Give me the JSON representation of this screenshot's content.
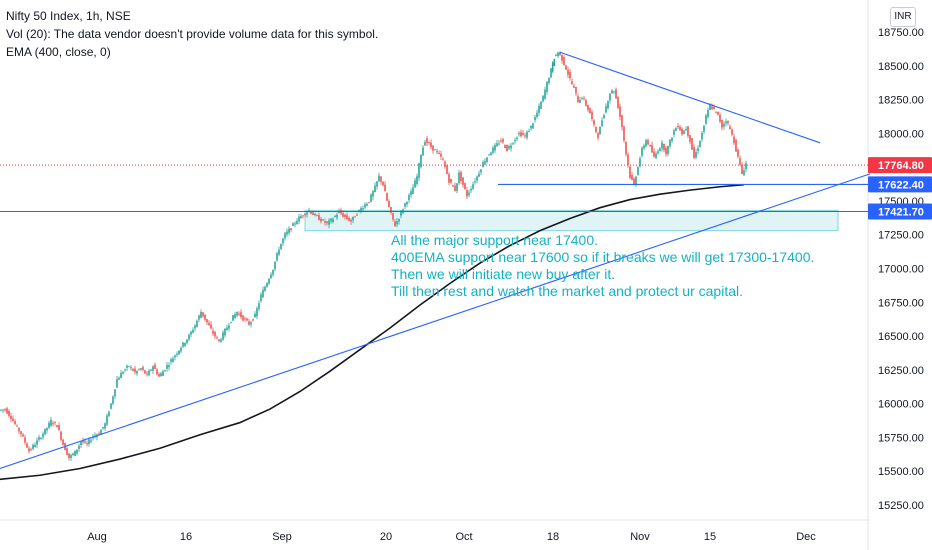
{
  "legend": {
    "symbol_line": "Nifty 50 Index, 1h, NSE",
    "volume_line": "Vol (20): The data vendor doesn't provide volume data for this symbol.",
    "ema_line": "EMA (400, close, 0)"
  },
  "currency_label": "INR",
  "annotation_lines": [
    "All the major support near 17400.",
    "400EMA support near 17600 so if it breaks we will get 17300-17400.",
    "Then we will initiate new buy after it.",
    "Till then rest and watch the market and protect ur capital."
  ],
  "colors": {
    "candle_up": "#26a69a",
    "candle_down": "#ef5350",
    "trendline": "#2962ff",
    "ema": "#131722",
    "current_price": "#f23645",
    "annotation_text": "#12b3c4",
    "support_zone_fill": "#e0f4f6"
  },
  "chart_data": {
    "type": "candlestick",
    "title": "Nifty 50 Index, 1h, NSE",
    "ylim": [
      15100,
      18900
    ],
    "y_ticks": [
      "18750.00",
      "18500.00",
      "18250.00",
      "18000.00",
      "17750.00",
      "17500.00",
      "17250.00",
      "17000.00",
      "16750.00",
      "16500.00",
      "16250.00",
      "16000.00",
      "15750.00",
      "15500.00",
      "15250.00"
    ],
    "x_ticks": [
      "Aug",
      "16",
      "Sep",
      "20",
      "Oct",
      "18",
      "Nov",
      "15",
      "Dec"
    ],
    "price_path": [
      [
        0,
        15950
      ],
      [
        6,
        15960
      ],
      [
        12,
        15900
      ],
      [
        18,
        15820
      ],
      [
        22,
        15780
      ],
      [
        30,
        15650
      ],
      [
        38,
        15720
      ],
      [
        46,
        15800
      ],
      [
        52,
        15870
      ],
      [
        58,
        15840
      ],
      [
        64,
        15700
      ],
      [
        70,
        15600
      ],
      [
        76,
        15640
      ],
      [
        82,
        15720
      ],
      [
        88,
        15700
      ],
      [
        94,
        15760
      ],
      [
        100,
        15780
      ],
      [
        106,
        15850
      ],
      [
        112,
        16000
      ],
      [
        118,
        16180
      ],
      [
        124,
        16240
      ],
      [
        130,
        16280
      ],
      [
        136,
        16230
      ],
      [
        142,
        16260
      ],
      [
        148,
        16210
      ],
      [
        154,
        16280
      ],
      [
        160,
        16200
      ],
      [
        166,
        16260
      ],
      [
        172,
        16320
      ],
      [
        178,
        16380
      ],
      [
        184,
        16440
      ],
      [
        190,
        16500
      ],
      [
        196,
        16580
      ],
      [
        202,
        16680
      ],
      [
        208,
        16600
      ],
      [
        214,
        16520
      ],
      [
        220,
        16460
      ],
      [
        226,
        16540
      ],
      [
        232,
        16620
      ],
      [
        238,
        16680
      ],
      [
        244,
        16630
      ],
      [
        250,
        16590
      ],
      [
        256,
        16650
      ],
      [
        262,
        16800
      ],
      [
        268,
        16900
      ],
      [
        274,
        17000
      ],
      [
        280,
        17150
      ],
      [
        286,
        17250
      ],
      [
        292,
        17300
      ],
      [
        298,
        17360
      ],
      [
        304,
        17400
      ],
      [
        310,
        17430
      ],
      [
        316,
        17390
      ],
      [
        322,
        17360
      ],
      [
        328,
        17330
      ],
      [
        334,
        17370
      ],
      [
        340,
        17420
      ],
      [
        346,
        17380
      ],
      [
        352,
        17350
      ],
      [
        358,
        17410
      ],
      [
        364,
        17460
      ],
      [
        370,
        17500
      ],
      [
        376,
        17600
      ],
      [
        380,
        17680
      ],
      [
        384,
        17620
      ],
      [
        388,
        17500
      ],
      [
        392,
        17400
      ],
      [
        396,
        17320
      ],
      [
        400,
        17380
      ],
      [
        406,
        17480
      ],
      [
        412,
        17560
      ],
      [
        418,
        17680
      ],
      [
        422,
        17850
      ],
      [
        426,
        17950
      ],
      [
        432,
        17900
      ],
      [
        438,
        17860
      ],
      [
        444,
        17800
      ],
      [
        450,
        17650
      ],
      [
        456,
        17580
      ],
      [
        460,
        17700
      ],
      [
        464,
        17620
      ],
      [
        468,
        17540
      ],
      [
        472,
        17600
      ],
      [
        478,
        17680
      ],
      [
        484,
        17780
      ],
      [
        490,
        17850
      ],
      [
        496,
        17900
      ],
      [
        502,
        17950
      ],
      [
        508,
        17880
      ],
      [
        514,
        17940
      ],
      [
        520,
        18000
      ],
      [
        526,
        17980
      ],
      [
        532,
        18050
      ],
      [
        538,
        18150
      ],
      [
        544,
        18270
      ],
      [
        550,
        18420
      ],
      [
        555,
        18560
      ],
      [
        559,
        18600
      ],
      [
        563,
        18550
      ],
      [
        567,
        18480
      ],
      [
        571,
        18400
      ],
      [
        575,
        18330
      ],
      [
        579,
        18240
      ],
      [
        583,
        18270
      ],
      [
        587,
        18210
      ],
      [
        591,
        18150
      ],
      [
        595,
        18050
      ],
      [
        599,
        17980
      ],
      [
        603,
        18100
      ],
      [
        607,
        18200
      ],
      [
        611,
        18300
      ],
      [
        615,
        18320
      ],
      [
        619,
        18200
      ],
      [
        623,
        18050
      ],
      [
        627,
        17850
      ],
      [
        631,
        17680
      ],
      [
        635,
        17620
      ],
      [
        639,
        17760
      ],
      [
        643,
        17880
      ],
      [
        647,
        17950
      ],
      [
        651,
        17900
      ],
      [
        655,
        17820
      ],
      [
        659,
        17880
      ],
      [
        663,
        17920
      ],
      [
        667,
        17860
      ],
      [
        671,
        17940
      ],
      [
        675,
        18020
      ],
      [
        679,
        18060
      ],
      [
        683,
        18000
      ],
      [
        687,
        18040
      ],
      [
        691,
        17950
      ],
      [
        695,
        17820
      ],
      [
        699,
        17900
      ],
      [
        703,
        18000
      ],
      [
        707,
        18120
      ],
      [
        711,
        18210
      ],
      [
        715,
        18170
      ],
      [
        719,
        18130
      ],
      [
        723,
        18050
      ],
      [
        727,
        18100
      ],
      [
        731,
        18030
      ],
      [
        735,
        17940
      ],
      [
        739,
        17820
      ],
      [
        743,
        17700
      ],
      [
        747,
        17780
      ]
    ],
    "ema_path": [
      [
        0,
        15440
      ],
      [
        40,
        15470
      ],
      [
        80,
        15520
      ],
      [
        120,
        15590
      ],
      [
        160,
        15670
      ],
      [
        200,
        15770
      ],
      [
        240,
        15860
      ],
      [
        270,
        15960
      ],
      [
        300,
        16090
      ],
      [
        330,
        16240
      ],
      [
        360,
        16400
      ],
      [
        390,
        16560
      ],
      [
        420,
        16730
      ],
      [
        450,
        16890
      ],
      [
        480,
        17040
      ],
      [
        510,
        17170
      ],
      [
        540,
        17280
      ],
      [
        570,
        17370
      ],
      [
        600,
        17450
      ],
      [
        630,
        17510
      ],
      [
        660,
        17550
      ],
      [
        690,
        17580
      ],
      [
        720,
        17605
      ],
      [
        744,
        17620
      ]
    ],
    "lines": [
      {
        "label": "upper trendline",
        "points": [
          [
            560,
            18600
          ],
          [
            820,
            17930
          ]
        ]
      },
      {
        "label": "rising trendline",
        "points": [
          [
            0,
            15520
          ],
          [
            870,
            17700
          ]
        ]
      },
      {
        "label": "support line 17622",
        "points": [
          [
            498,
            17622
          ],
          [
            868,
            17622
          ]
        ]
      },
      {
        "label": "support line 17421",
        "points": [
          [
            0,
            17421.7
          ],
          [
            868,
            17421.7
          ]
        ]
      }
    ],
    "support_zone": {
      "x_range": [
        305,
        838
      ],
      "y_range": [
        17280,
        17430
      ]
    },
    "current_price": 17764.8,
    "price_labels": [
      {
        "text": "17764.80",
        "value": 17764.8,
        "color": "#f23645"
      },
      {
        "text": "17622.40",
        "value": 17622.4,
        "color": "#2962ff"
      },
      {
        "text": "17421.70",
        "value": 17421.7,
        "color": "#2962ff"
      }
    ],
    "grid": false
  }
}
